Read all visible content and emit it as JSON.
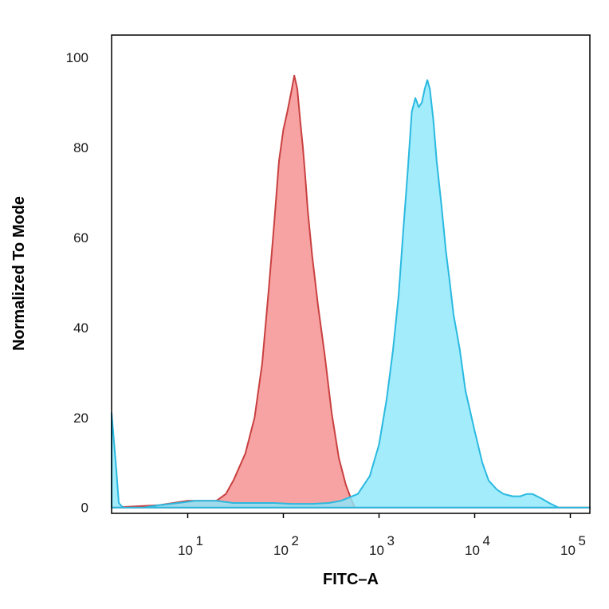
{
  "chart_data": {
    "type": "area",
    "title": "",
    "xlabel": "FITC–A",
    "ylabel": "Normalized To Mode",
    "xscale": "log",
    "xlim": [
      1.6,
      160000
    ],
    "ylim": [
      -1.3,
      105
    ],
    "grid": false,
    "legend": "none",
    "y_ticks": [
      "0",
      "20",
      "40",
      "60",
      "80",
      "100"
    ],
    "x_ticks": [
      {
        "base": "10",
        "exp": "1",
        "value": 10
      },
      {
        "base": "10",
        "exp": "2",
        "value": 100
      },
      {
        "base": "10",
        "exp": "3",
        "value": 1000
      },
      {
        "base": "10",
        "exp": "4",
        "value": 10000
      },
      {
        "base": "10",
        "exp": "5",
        "value": 100000
      }
    ],
    "series": [
      {
        "fill": "#f78f8f",
        "stroke": "#c94040",
        "points": [
          [
            1.6,
            0
          ],
          [
            5,
            0.5
          ],
          [
            10,
            1.5
          ],
          [
            15,
            1.5
          ],
          [
            20,
            1.5
          ],
          [
            25,
            3
          ],
          [
            30,
            6
          ],
          [
            40,
            12
          ],
          [
            50,
            20
          ],
          [
            60,
            32
          ],
          [
            70,
            48
          ],
          [
            80,
            63
          ],
          [
            90,
            77
          ],
          [
            100,
            84
          ],
          [
            110,
            88
          ],
          [
            120,
            92
          ],
          [
            130,
            96
          ],
          [
            140,
            93
          ],
          [
            150,
            86
          ],
          [
            160,
            80
          ],
          [
            170,
            73
          ],
          [
            180,
            66
          ],
          [
            200,
            56
          ],
          [
            230,
            45
          ],
          [
            270,
            34
          ],
          [
            320,
            21
          ],
          [
            380,
            11
          ],
          [
            450,
            5
          ],
          [
            520,
            1.5
          ],
          [
            560,
            0
          ],
          [
            160000,
            0
          ]
        ]
      },
      {
        "fill": "#8de8fb",
        "stroke": "#2ab9e0",
        "points": [
          [
            1.6,
            21
          ],
          [
            1.8,
            8
          ],
          [
            1.9,
            1
          ],
          [
            2.1,
            0
          ],
          [
            3.5,
            0
          ],
          [
            5,
            0.5
          ],
          [
            8,
            1
          ],
          [
            12,
            1.5
          ],
          [
            16,
            1.5
          ],
          [
            20,
            1.5
          ],
          [
            30,
            1
          ],
          [
            50,
            1
          ],
          [
            80,
            1
          ],
          [
            120,
            0.8
          ],
          [
            200,
            0.8
          ],
          [
            300,
            1
          ],
          [
            400,
            1.5
          ],
          [
            600,
            3
          ],
          [
            800,
            7
          ],
          [
            1000,
            14
          ],
          [
            1200,
            24
          ],
          [
            1400,
            35
          ],
          [
            1600,
            47
          ],
          [
            1800,
            62
          ],
          [
            2000,
            75
          ],
          [
            2200,
            88
          ],
          [
            2400,
            91
          ],
          [
            2600,
            89
          ],
          [
            2800,
            90
          ],
          [
            3000,
            93
          ],
          [
            3200,
            95
          ],
          [
            3400,
            93
          ],
          [
            3700,
            86
          ],
          [
            4000,
            77
          ],
          [
            4500,
            67
          ],
          [
            5000,
            57
          ],
          [
            5500,
            50
          ],
          [
            6000,
            43
          ],
          [
            7000,
            35
          ],
          [
            8000,
            26
          ],
          [
            10000,
            17
          ],
          [
            12000,
            10
          ],
          [
            14000,
            6
          ],
          [
            17000,
            4
          ],
          [
            20000,
            3
          ],
          [
            25000,
            2.5
          ],
          [
            30000,
            2.5
          ],
          [
            35000,
            3
          ],
          [
            40000,
            3
          ],
          [
            50000,
            2
          ],
          [
            60000,
            1
          ],
          [
            75000,
            0
          ],
          [
            160000,
            0
          ]
        ]
      }
    ]
  }
}
